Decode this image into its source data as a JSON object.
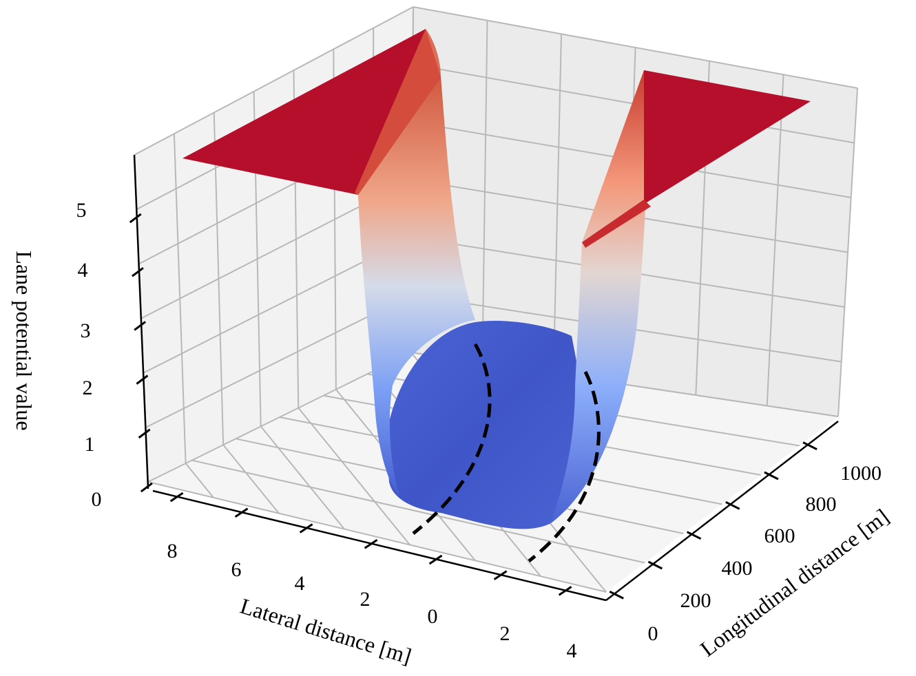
{
  "chart_data": {
    "type": "surface3d",
    "title": "",
    "zlabel": "Lane potential value",
    "xlabel": "Lateral distance [m]",
    "ylabel": "Longitudinal distance [m]",
    "z_ticks": [
      "0",
      "1",
      "2",
      "3",
      "4",
      "5"
    ],
    "x_ticks": [
      "8",
      "6",
      "4",
      "2",
      "0",
      "2",
      "4"
    ],
    "y_ticks": [
      "0",
      "200",
      "400",
      "600",
      "800",
      "1000"
    ],
    "xlim": [
      -4,
      8
    ],
    "ylim": [
      0,
      1000
    ],
    "zlim": [
      0,
      5.5
    ],
    "grid": true,
    "colormap": "coolwarm",
    "colors": {
      "low": "#3b4cc0",
      "mid": "#dddddd",
      "high": "#b40426",
      "pane": "#f2f2f2",
      "grid": "#b0b0b0"
    },
    "surface_description": "Lane potential: a wide blue valley between two red walls capped at the maximum value",
    "lane_boundaries": {
      "style": "dashed",
      "color": "#000000",
      "count": 2
    }
  }
}
